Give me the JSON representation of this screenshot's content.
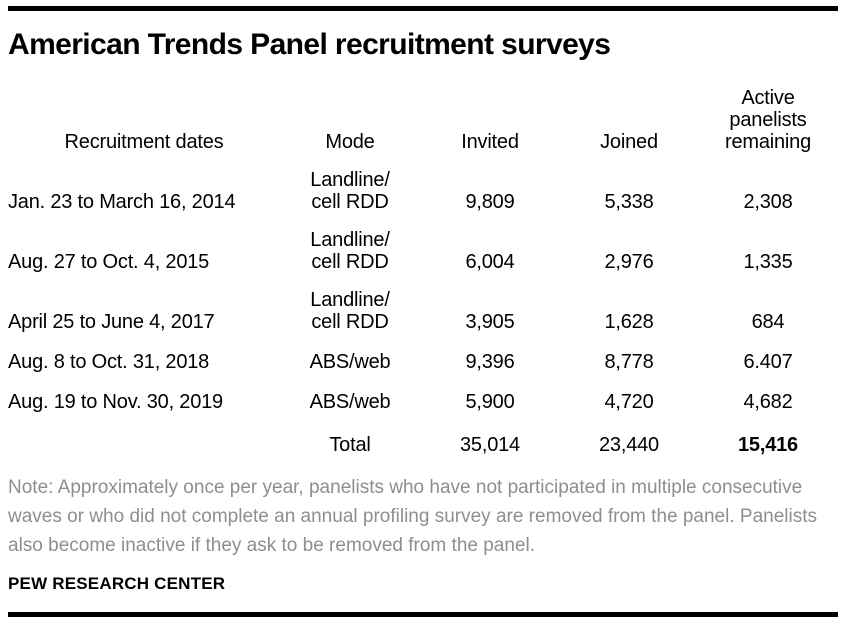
{
  "title": "American Trends Panel recruitment surveys",
  "table": {
    "headers": {
      "dates": "Recruitment dates",
      "mode": "Mode",
      "invited": "Invited",
      "joined": "Joined",
      "active": "Active\npanelists\nremaining"
    },
    "rows": [
      {
        "dates": "Jan. 23 to March 16, 2014",
        "mode": "Landline/\ncell RDD",
        "invited": "9,809",
        "joined": "5,338",
        "active": "2,308"
      },
      {
        "dates": "Aug. 27 to Oct. 4, 2015",
        "mode": "Landline/\ncell RDD",
        "invited": "6,004",
        "joined": "2,976",
        "active": "1,335"
      },
      {
        "dates": "April 25 to June 4, 2017",
        "mode": "Landline/\ncell RDD",
        "invited": "3,905",
        "joined": "1,628",
        "active": "684"
      },
      {
        "dates": "Aug. 8 to Oct. 31, 2018",
        "mode": "ABS/web",
        "invited": "9,396",
        "joined": "8,778",
        "active": "6.407"
      },
      {
        "dates": "Aug. 19 to Nov. 30, 2019",
        "mode": "ABS/web",
        "invited": "5,900",
        "joined": "4,720",
        "active": "4,682"
      }
    ],
    "total": {
      "label": "Total",
      "invited": "35,014",
      "joined": "23,440",
      "active": "15,416"
    }
  },
  "note": "Note: Approximately once per year, panelists who have not participated in multiple consecutive waves or who did not complete an annual profiling survey are removed from the panel. Panelists also become inactive if they ask to be removed from the panel.",
  "footer": "PEW RESEARCH CENTER",
  "colors": {
    "text": "#000000",
    "note_gray": "#8e8e8e",
    "rule": "#000000",
    "background": "#ffffff"
  },
  "chart_data": {
    "type": "table",
    "title": "American Trends Panel recruitment surveys",
    "columns": [
      "Recruitment dates",
      "Mode",
      "Invited",
      "Joined",
      "Active panelists remaining"
    ],
    "rows": [
      [
        "Jan. 23 to March 16, 2014",
        "Landline/cell RDD",
        9809,
        5338,
        2308
      ],
      [
        "Aug. 27 to Oct. 4, 2015",
        "Landline/cell RDD",
        6004,
        2976,
        1335
      ],
      [
        "April 25 to June 4, 2017",
        "Landline/cell RDD",
        3905,
        1628,
        684
      ],
      [
        "Aug. 8 to Oct. 31, 2018",
        "ABS/web",
        9396,
        8778,
        6407
      ],
      [
        "Aug. 19 to Nov. 30, 2019",
        "ABS/web",
        5900,
        4720,
        4682
      ]
    ],
    "total_row": [
      "",
      "Total",
      35014,
      23440,
      15416
    ],
    "displayed_anomaly": "Row 4 'Active panelists remaining' is printed as 6.407 (period) in the source graphic",
    "note": "Note: Approximately once per year, panelists who have not participated in multiple consecutive waves or who did not complete an annual profiling survey are removed from the panel. Panelists also become inactive if they ask to be removed from the panel.",
    "source": "PEW RESEARCH CENTER"
  }
}
